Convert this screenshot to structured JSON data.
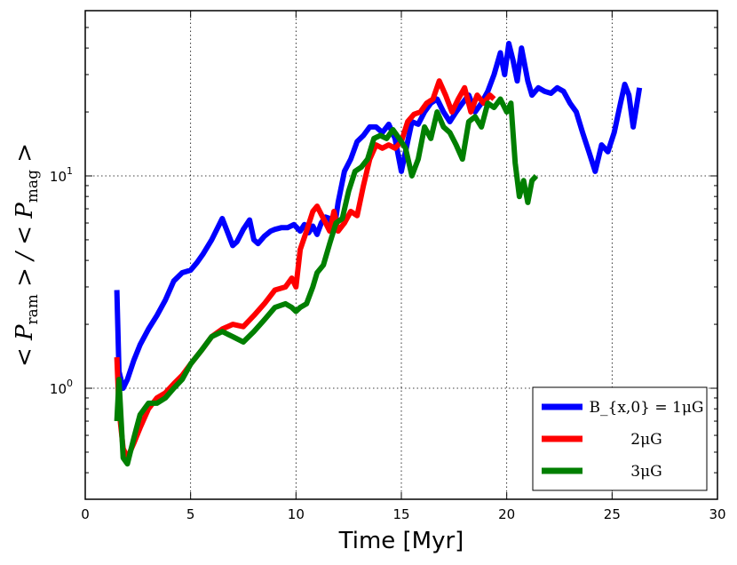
{
  "chart_data": {
    "type": "line",
    "xlabel": "Time [Myr]",
    "ylabel": "< P_ram > / < P_mag >",
    "ylabel_display": {
      "p1": "< P",
      "s1": "ram",
      "mid": " > / < P",
      "s2": "mag",
      "p2": " >"
    },
    "xlim": [
      0,
      30
    ],
    "ylim": [
      0.3,
      60
    ],
    "yscale": "log",
    "grid": true,
    "x_ticks": [
      "0",
      "5",
      "10",
      "15",
      "20",
      "25",
      "30"
    ],
    "y_ticks": [
      {
        "base": "10",
        "exp": "0"
      },
      {
        "base": "10",
        "exp": "1"
      }
    ],
    "legend_position": "lower-right",
    "series": [
      {
        "name": "B_{x,0} = 1μG",
        "color": "#0000ff",
        "x": [
          1.5,
          1.6,
          1.8,
          2.0,
          2.3,
          2.6,
          3.0,
          3.4,
          3.8,
          4.2,
          4.6,
          5.0,
          5.3,
          5.6,
          6.0,
          6.5,
          7.0,
          7.2,
          7.5,
          7.8,
          8.0,
          8.2,
          8.5,
          8.8,
          9.0,
          9.3,
          9.6,
          9.9,
          10.2,
          10.4,
          10.6,
          10.8,
          11.0,
          11.2,
          11.4,
          11.6,
          11.8,
          12.0,
          12.3,
          12.6,
          12.9,
          13.2,
          13.5,
          13.8,
          14.1,
          14.4,
          14.7,
          15.0,
          15.2,
          15.5,
          15.8,
          16.1,
          16.4,
          16.7,
          17.0,
          17.3,
          17.6,
          17.9,
          18.2,
          18.5,
          18.8,
          19.1,
          19.4,
          19.7,
          19.9,
          20.1,
          20.3,
          20.5,
          20.7,
          21.0,
          21.2,
          21.5,
          21.8,
          22.1,
          22.4,
          22.7,
          23.0,
          23.3,
          23.6,
          23.9,
          24.2,
          24.5,
          24.8,
          25.1,
          25.4,
          25.6,
          25.8,
          26.0,
          26.3
        ],
        "y": [
          2.9,
          1.2,
          1.0,
          1.1,
          1.35,
          1.6,
          1.9,
          2.2,
          2.6,
          3.2,
          3.5,
          3.6,
          3.9,
          4.3,
          5.0,
          6.3,
          4.7,
          4.9,
          5.6,
          6.2,
          5.0,
          4.8,
          5.2,
          5.5,
          5.6,
          5.7,
          5.7,
          5.9,
          5.5,
          5.9,
          5.4,
          5.8,
          5.3,
          6.0,
          6.4,
          6.3,
          5.5,
          7.5,
          10.5,
          12.0,
          14.5,
          15.5,
          17.0,
          17.0,
          16.0,
          17.5,
          15.0,
          10.5,
          13.0,
          18.0,
          17.5,
          20.0,
          22.0,
          23.0,
          20.0,
          18.0,
          20.0,
          22.0,
          24.0,
          20.0,
          22.0,
          25.0,
          30.0,
          38.0,
          30.0,
          42.0,
          35.0,
          28.0,
          40.0,
          28.0,
          24.0,
          26.0,
          25.0,
          24.5,
          26.0,
          25.0,
          22.0,
          20.0,
          16.0,
          13.0,
          10.5,
          14.0,
          13.0,
          16.0,
          22.0,
          27.0,
          24.0,
          17.0,
          26.0
        ]
      },
      {
        "name": "2μG",
        "color": "#ff0000",
        "x": [
          1.5,
          1.6,
          1.8,
          2.0,
          2.3,
          2.6,
          3.0,
          3.4,
          3.8,
          4.2,
          4.6,
          5.0,
          5.5,
          6.0,
          6.5,
          7.0,
          7.5,
          8.0,
          8.5,
          9.0,
          9.5,
          9.8,
          10.0,
          10.2,
          10.5,
          10.8,
          11.0,
          11.3,
          11.6,
          11.8,
          12.0,
          12.3,
          12.6,
          12.9,
          13.2,
          13.5,
          13.8,
          14.1,
          14.4,
          14.7,
          15.0,
          15.3,
          15.6,
          15.9,
          16.2,
          16.5,
          16.8,
          17.1,
          17.4,
          17.7,
          18.0,
          18.3,
          18.6,
          18.9,
          19.2,
          19.4
        ],
        "y": [
          1.4,
          0.8,
          0.52,
          0.47,
          0.55,
          0.65,
          0.8,
          0.9,
          0.95,
          1.05,
          1.15,
          1.3,
          1.5,
          1.75,
          1.9,
          2.0,
          1.95,
          2.2,
          2.5,
          2.9,
          3.0,
          3.3,
          3.0,
          4.5,
          5.5,
          6.8,
          7.2,
          6.3,
          5.5,
          6.8,
          5.5,
          6.0,
          6.8,
          6.5,
          9.0,
          12.0,
          14.0,
          13.5,
          14.0,
          13.5,
          14.5,
          18.0,
          19.5,
          20.0,
          22.0,
          23.0,
          28.0,
          24.0,
          20.0,
          23.0,
          26.0,
          20.0,
          24.0,
          22.0,
          24.0,
          23.0
        ]
      },
      {
        "name": "3μG",
        "color": "#007f00",
        "x": [
          1.5,
          1.6,
          1.8,
          2.0,
          2.3,
          2.6,
          3.0,
          3.4,
          3.8,
          4.2,
          4.6,
          5.0,
          5.5,
          6.0,
          6.5,
          7.0,
          7.5,
          8.0,
          8.5,
          9.0,
          9.5,
          9.8,
          10.0,
          10.2,
          10.5,
          10.8,
          11.0,
          11.3,
          11.6,
          11.9,
          12.2,
          12.5,
          12.8,
          13.1,
          13.4,
          13.7,
          14.0,
          14.3,
          14.6,
          14.9,
          15.2,
          15.5,
          15.8,
          16.1,
          16.4,
          16.7,
          17.0,
          17.3,
          17.6,
          17.9,
          18.2,
          18.5,
          18.8,
          19.1,
          19.4,
          19.7,
          20.0,
          20.2,
          20.4,
          20.6,
          20.8,
          21.0,
          21.2,
          21.4
        ],
        "y": [
          0.7,
          1.1,
          0.47,
          0.44,
          0.58,
          0.75,
          0.85,
          0.85,
          0.9,
          1.0,
          1.1,
          1.3,
          1.5,
          1.75,
          1.85,
          1.75,
          1.65,
          1.85,
          2.1,
          2.4,
          2.5,
          2.4,
          2.3,
          2.4,
          2.5,
          3.0,
          3.5,
          3.8,
          4.8,
          6.0,
          6.3,
          8.5,
          10.5,
          11.0,
          12.0,
          15.0,
          15.5,
          15.0,
          16.5,
          15.0,
          13.5,
          10.0,
          12.0,
          17.0,
          15.0,
          20.0,
          17.0,
          16.0,
          14.0,
          12.0,
          18.0,
          19.0,
          17.0,
          22.0,
          21.0,
          23.0,
          20.0,
          22.0,
          11.5,
          8.0,
          9.5,
          7.5,
          9.5,
          10.0
        ]
      }
    ]
  }
}
